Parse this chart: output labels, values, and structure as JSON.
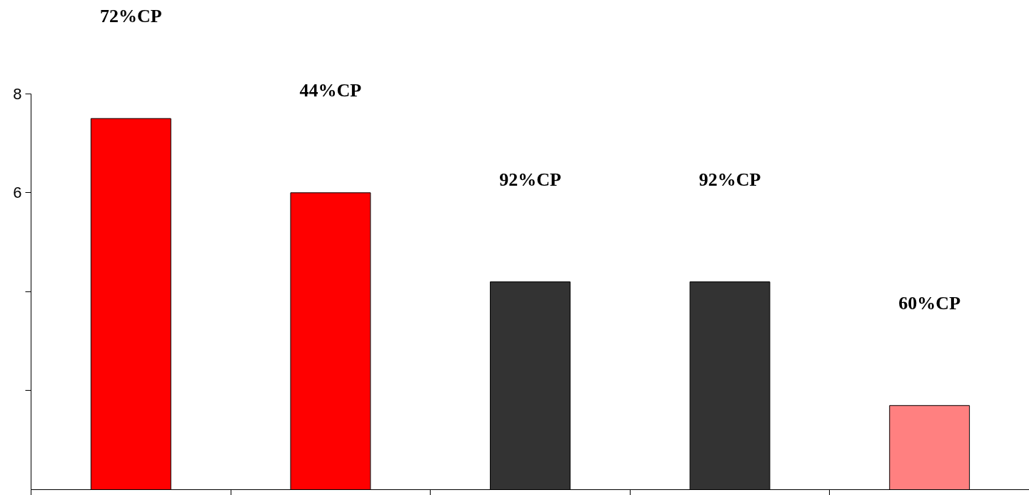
{
  "chart_data": {
    "type": "bar",
    "categories": [
      null,
      null,
      null,
      null,
      null
    ],
    "values": [
      7.5,
      6.0,
      4.2,
      4.2,
      1.7
    ],
    "colors": [
      "#ff0000",
      "#ff0000",
      "#333333",
      "#333333",
      "#ff8080"
    ],
    "ylim": [
      0,
      8
    ],
    "yticks": [
      {
        "value": 2,
        "label": null
      },
      {
        "value": 4,
        "label": null
      },
      6,
      8
    ],
    "grid": false,
    "annotations": [
      "72%CP",
      "44%CP",
      "92%CP",
      "92%CP",
      "60%CP"
    ]
  }
}
